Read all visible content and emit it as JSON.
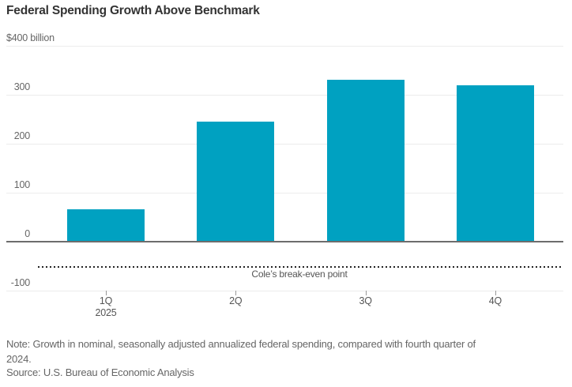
{
  "title": "Federal Spending Growth Above Benchmark",
  "chart_data": {
    "type": "bar",
    "categories": [
      "1Q",
      "2Q",
      "3Q",
      "4Q"
    ],
    "x_sublabels": [
      "2025",
      "",
      "",
      ""
    ],
    "values": [
      65,
      245,
      330,
      320
    ],
    "unit_label": "$400 billion",
    "y_ticks": [
      400,
      300,
      200,
      100,
      0,
      -100
    ],
    "ylim": [
      -100,
      400
    ],
    "grid": true,
    "legend": "none",
    "bar_color": "#00a1c1",
    "annotation": {
      "label": "Cole’s break-even point",
      "value": -50
    }
  },
  "note": {
    "line1": "Note: Growth in nominal, seasonally adjusted annualized federal spending, compared with fourth quarter of",
    "line2": "2024."
  },
  "source": "Source: U.S. Bureau of Economic Analysis",
  "colors": {
    "bar": "#00a1c1",
    "grid": "#ececec",
    "zero_line": "#6d6d6d",
    "dotted_line": "#222222",
    "title_text": "#333333",
    "label_text": "#666666"
  }
}
